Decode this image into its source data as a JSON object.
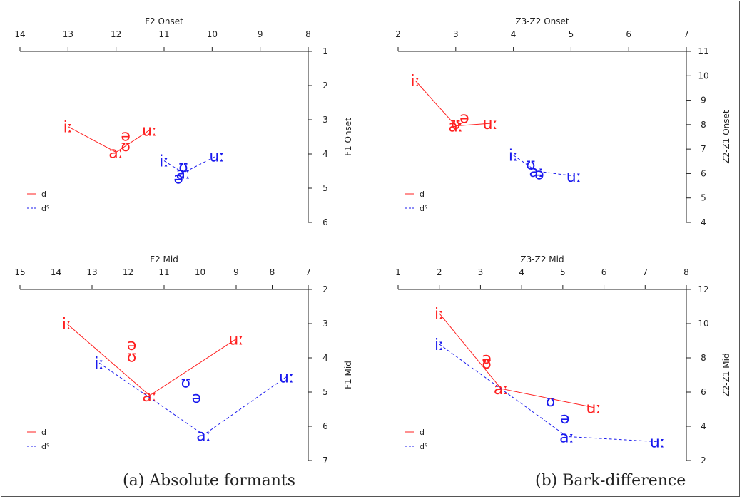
{
  "colors": {
    "d": "#ff2020",
    "d_phar": "#1a1aee"
  },
  "captions": {
    "a": "(a) Absolute formants",
    "b": "(b) Bark-difference"
  },
  "chart_data": [
    {
      "type": "scatter",
      "xlabel": "F2 Onset",
      "ylabel": "F1 Onset",
      "xlim": [
        14,
        8
      ],
      "ylim": [
        6,
        1
      ],
      "xticks": [
        14,
        13,
        12,
        11,
        10,
        9,
        8
      ],
      "yticks": [
        1,
        2,
        3,
        4,
        5,
        6
      ],
      "legend": {
        "position": "bottom-left",
        "entries": [
          "d",
          "dˤ"
        ]
      },
      "series": [
        {
          "name": "d",
          "points": [
            {
              "label": "iː",
              "x": 13.0,
              "y": 3.2
            },
            {
              "label": "ə",
              "x": 11.8,
              "y": 3.45
            },
            {
              "label": "ʊ",
              "x": 11.8,
              "y": 3.75
            },
            {
              "label": "aː",
              "x": 12.0,
              "y": 3.95
            },
            {
              "label": "uː",
              "x": 11.3,
              "y": 3.3
            }
          ],
          "line": [
            "iː",
            "aː",
            "uː"
          ]
        },
        {
          "name": "dˤ",
          "points": [
            {
              "label": "iː",
              "x": 11.0,
              "y": 4.2
            },
            {
              "label": "ʊ",
              "x": 10.6,
              "y": 4.35
            },
            {
              "label": "ə",
              "x": 10.7,
              "y": 4.7
            },
            {
              "label": "aː",
              "x": 10.6,
              "y": 4.55
            },
            {
              "label": "uː",
              "x": 9.9,
              "y": 4.05
            }
          ],
          "line": [
            "iː",
            "aː",
            "uː"
          ]
        }
      ]
    },
    {
      "type": "scatter",
      "xlabel": "Z3-Z2 Onset",
      "ylabel": "Z2-Z1 Onset",
      "xlim": [
        2,
        7
      ],
      "ylim": [
        4,
        11
      ],
      "xticks": [
        2,
        3,
        4,
        5,
        6,
        7
      ],
      "yticks": [
        4,
        5,
        6,
        7,
        8,
        9,
        10,
        11
      ],
      "legend": {
        "position": "bottom-left",
        "entries": [
          "d",
          "dˤ"
        ]
      },
      "series": [
        {
          "name": "d",
          "points": [
            {
              "label": "iː",
              "x": 2.3,
              "y": 9.8
            },
            {
              "label": "ə",
              "x": 3.15,
              "y": 8.3
            },
            {
              "label": "ʊ",
              "x": 3.0,
              "y": 8.05
            },
            {
              "label": "aː",
              "x": 3.0,
              "y": 7.95
            },
            {
              "label": "uː",
              "x": 3.6,
              "y": 8.05
            }
          ],
          "line": [
            "iː",
            "aː",
            "uː"
          ]
        },
        {
          "name": "dˤ",
          "points": [
            {
              "label": "iː",
              "x": 4.0,
              "y": 6.75
            },
            {
              "label": "ʊ",
              "x": 4.3,
              "y": 6.4
            },
            {
              "label": "ə",
              "x": 4.45,
              "y": 6.0
            },
            {
              "label": "aː",
              "x": 4.4,
              "y": 6.1
            },
            {
              "label": "uː",
              "x": 5.05,
              "y": 5.9
            }
          ],
          "line": [
            "iː",
            "aː",
            "uː"
          ]
        }
      ]
    },
    {
      "type": "scatter",
      "xlabel": "F2 Mid",
      "ylabel": "F1 Mid",
      "xlim": [
        15,
        7
      ],
      "ylim": [
        7,
        2
      ],
      "xticks": [
        15,
        14,
        13,
        12,
        11,
        10,
        9,
        8,
        7
      ],
      "yticks": [
        2,
        3,
        4,
        5,
        6,
        7
      ],
      "legend": {
        "position": "bottom-left",
        "entries": [
          "d",
          "dˤ"
        ]
      },
      "series": [
        {
          "name": "d",
          "points": [
            {
              "label": "iː",
              "x": 13.7,
              "y": 3.0
            },
            {
              "label": "ə",
              "x": 11.9,
              "y": 3.6
            },
            {
              "label": "ʊ",
              "x": 11.9,
              "y": 3.95
            },
            {
              "label": "aː",
              "x": 11.4,
              "y": 5.1
            },
            {
              "label": "uː",
              "x": 9.0,
              "y": 3.45
            }
          ],
          "line": [
            "iː",
            "aː",
            "uː"
          ]
        },
        {
          "name": "dˤ",
          "points": [
            {
              "label": "iː",
              "x": 12.8,
              "y": 4.15
            },
            {
              "label": "ʊ",
              "x": 10.4,
              "y": 4.7
            },
            {
              "label": "ə",
              "x": 10.1,
              "y": 5.15
            },
            {
              "label": "aː",
              "x": 9.9,
              "y": 6.25
            },
            {
              "label": "uː",
              "x": 7.6,
              "y": 4.55
            }
          ],
          "line": [
            "iː",
            "aː",
            "uː"
          ]
        }
      ]
    },
    {
      "type": "scatter",
      "xlabel": "Z3-Z2 Mid",
      "ylabel": "Z2-Z1 Mid",
      "xlim": [
        1,
        8
      ],
      "ylim": [
        2,
        12
      ],
      "xticks": [
        1,
        2,
        3,
        4,
        5,
        6,
        7,
        8
      ],
      "yticks": [
        2,
        4,
        6,
        8,
        10,
        12
      ],
      "legend": {
        "position": "bottom-left",
        "entries": [
          "d",
          "dˤ"
        ]
      },
      "series": [
        {
          "name": "d",
          "points": [
            {
              "label": "iː",
              "x": 2.0,
              "y": 10.6
            },
            {
              "label": "ə",
              "x": 3.15,
              "y": 8.0
            },
            {
              "label": "ʊ",
              "x": 3.15,
              "y": 7.7
            },
            {
              "label": "aː",
              "x": 3.5,
              "y": 6.2
            },
            {
              "label": "uː",
              "x": 5.75,
              "y": 5.1
            }
          ],
          "line": [
            "iː",
            "aː",
            "uː"
          ]
        },
        {
          "name": "dˤ",
          "points": [
            {
              "label": "iː",
              "x": 2.0,
              "y": 8.8
            },
            {
              "label": "ʊ",
              "x": 4.7,
              "y": 5.5
            },
            {
              "label": "ə",
              "x": 5.05,
              "y": 4.5
            },
            {
              "label": "aː",
              "x": 5.1,
              "y": 3.4
            },
            {
              "label": "uː",
              "x": 7.3,
              "y": 3.1
            }
          ],
          "line": [
            "aː",
            "uː"
          ],
          "line_prefix": [
            "iː",
            "aː"
          ]
        }
      ]
    }
  ]
}
